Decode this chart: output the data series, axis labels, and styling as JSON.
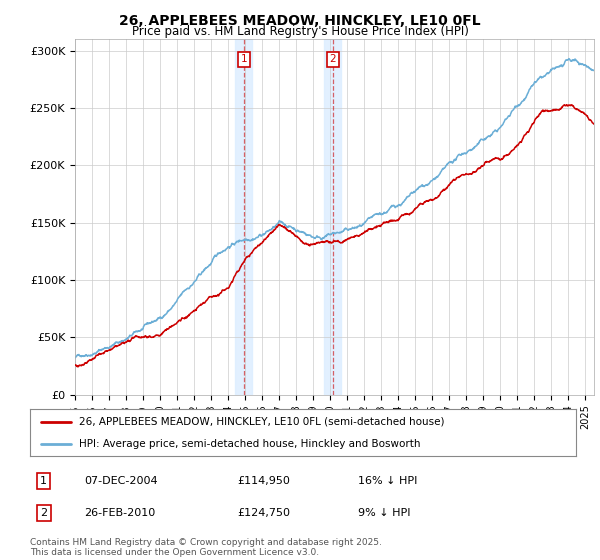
{
  "title": "26, APPLEBEES MEADOW, HINCKLEY, LE10 0FL",
  "subtitle": "Price paid vs. HM Land Registry's House Price Index (HPI)",
  "ylabel_ticks": [
    "£0",
    "£50K",
    "£100K",
    "£150K",
    "£200K",
    "£250K",
    "£300K"
  ],
  "ytick_vals": [
    0,
    50000,
    100000,
    150000,
    200000,
    250000,
    300000
  ],
  "ylim": [
    0,
    310000
  ],
  "xlim_start": 1995.0,
  "xlim_end": 2025.5,
  "hpi_color": "#6baed6",
  "price_color": "#cc0000",
  "vline_color": "#cc0000",
  "shaded_color": "#ddeeff",
  "legend_label_price": "26, APPLEBEES MEADOW, HINCKLEY, LE10 0FL (semi-detached house)",
  "legend_label_hpi": "HPI: Average price, semi-detached house, Hinckley and Bosworth",
  "transaction1_year": 2004.93,
  "transaction1_label": "1",
  "transaction1_price": 114950,
  "transaction1_date": "07-DEC-2004",
  "transaction2_year": 2010.15,
  "transaction2_label": "2",
  "transaction2_price": 124750,
  "transaction2_date": "26-FEB-2010",
  "footer": "Contains HM Land Registry data © Crown copyright and database right 2025.\nThis data is licensed under the Open Government Licence v3.0.",
  "background_color": "#ffffff",
  "grid_color": "#cccccc"
}
